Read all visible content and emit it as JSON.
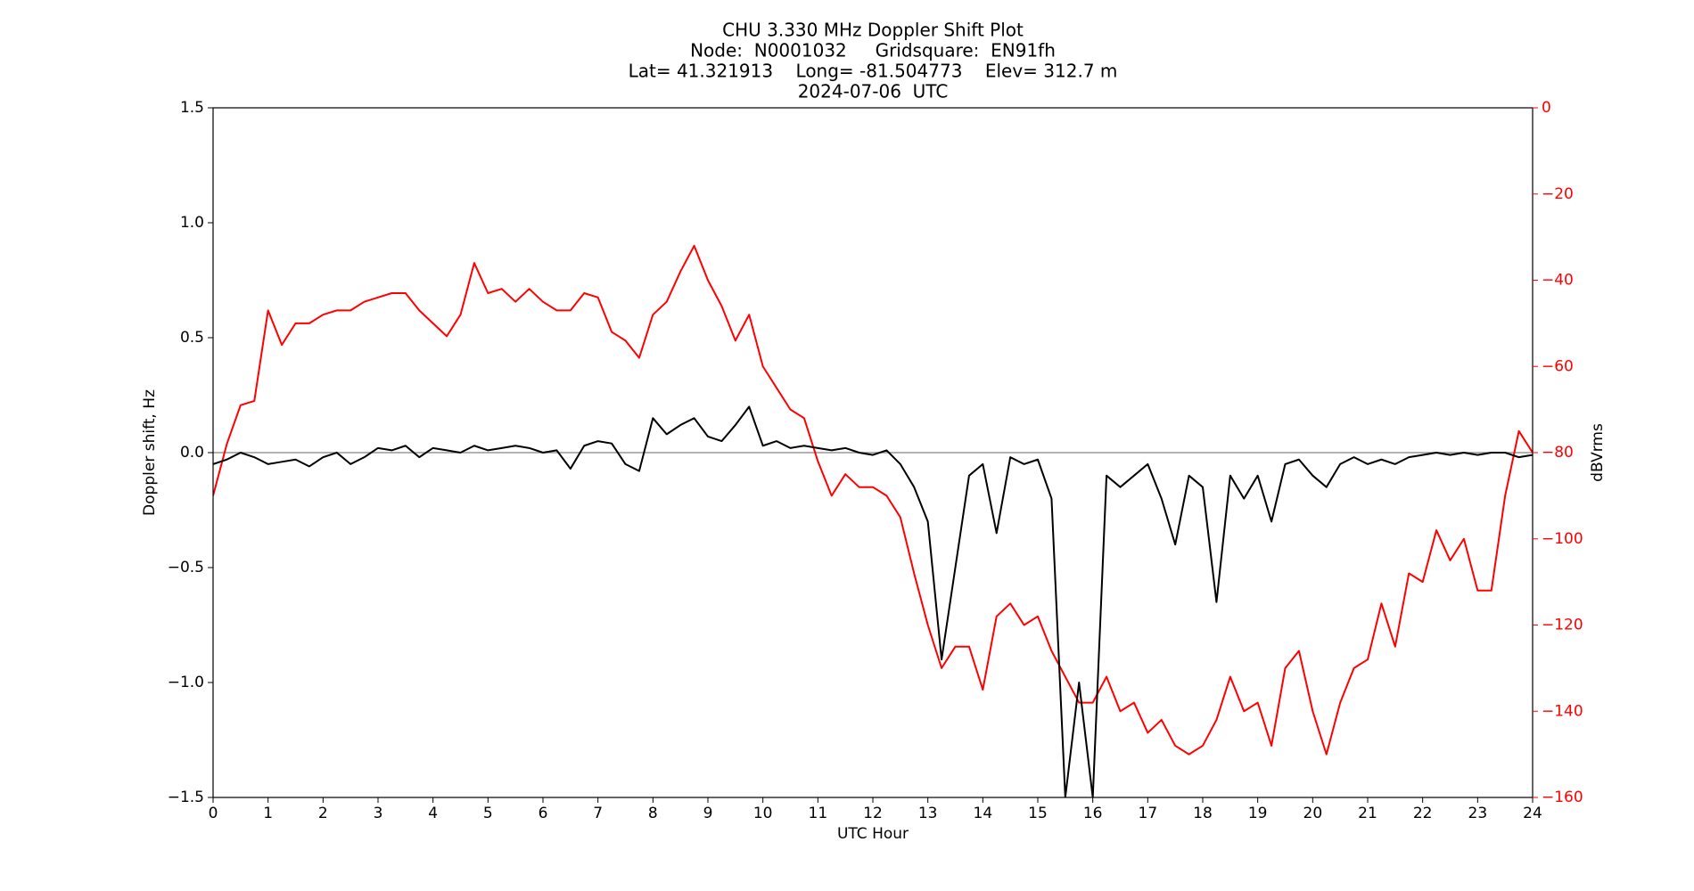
{
  "chart_data": {
    "type": "line",
    "title": [
      "CHU 3.330 MHz Doppler Shift Plot",
      "Node:  N0001032     Gridsquare:  EN91fh",
      "Lat= 41.321913    Long= -81.504773    Elev= 312.7 m",
      "2024-07-06  UTC"
    ],
    "xlabel": "UTC Hour",
    "ylabel": "Doppler shift, Hz",
    "y2label": "dBVrms",
    "y2color": "#ff0000",
    "x": [
      0,
      0.25,
      0.5,
      0.75,
      1,
      1.25,
      1.5,
      1.75,
      2,
      2.25,
      2.5,
      2.75,
      3,
      3.25,
      3.5,
      3.75,
      4,
      4.25,
      4.5,
      4.75,
      5,
      5.25,
      5.5,
      5.75,
      6,
      6.25,
      6.5,
      6.75,
      7,
      7.25,
      7.5,
      7.75,
      8,
      8.25,
      8.5,
      8.75,
      9,
      9.25,
      9.5,
      9.75,
      10,
      10.25,
      10.5,
      10.75,
      11,
      11.25,
      11.5,
      11.75,
      12,
      12.25,
      12.5,
      12.75,
      13,
      13.25,
      13.5,
      13.75,
      14,
      14.25,
      14.5,
      14.75,
      15,
      15.25,
      15.5,
      15.75,
      16,
      16.25,
      16.5,
      16.75,
      17,
      17.25,
      17.5,
      17.75,
      18,
      18.25,
      18.5,
      18.75,
      19,
      19.25,
      19.5,
      19.75,
      20,
      20.25,
      20.5,
      20.75,
      21,
      21.25,
      21.5,
      21.75,
      22,
      22.25,
      22.5,
      22.75,
      23,
      23.25,
      23.5,
      23.75,
      24
    ],
    "series": [
      {
        "color": "#ff0000",
        "axis": "y2",
        "values": [
          -90,
          -78,
          -69,
          -68,
          -47,
          -55,
          -50,
          -50,
          -48,
          -47,
          -47,
          -45,
          -44,
          -43,
          -43,
          -47,
          -50,
          -53,
          -48,
          -36,
          -43,
          -42,
          -45,
          -42,
          -45,
          -47,
          -47,
          -43,
          -44,
          -52,
          -54,
          -58,
          -48,
          -45,
          -38,
          -32,
          -40,
          -46,
          -54,
          -48,
          -60,
          -65,
          -70,
          -72,
          -82,
          -90,
          -85,
          -88,
          -88,
          -90,
          -95,
          -108,
          -120,
          -130,
          -125,
          -125,
          -135,
          -118,
          -115,
          -120,
          -118,
          -126,
          -132,
          -138,
          -138,
          -132,
          -140,
          -138,
          -145,
          -142,
          -148,
          -150,
          -148,
          -142,
          -132,
          -140,
          -138,
          -148,
          -130,
          -126,
          -140,
          -150,
          -138,
          -130,
          -128,
          -115,
          -125,
          -108,
          -110,
          -98,
          -105,
          -100,
          -112,
          -112,
          -90,
          -75,
          -80
        ]
      },
      {
        "color": "#000000",
        "values": [
          -0.05,
          -0.03,
          0.0,
          -0.02,
          -0.05,
          -0.04,
          -0.03,
          -0.06,
          -0.02,
          0.0,
          -0.05,
          -0.02,
          0.02,
          0.01,
          0.03,
          -0.02,
          0.02,
          0.01,
          0.0,
          0.03,
          0.01,
          0.02,
          0.03,
          0.02,
          0.0,
          0.01,
          -0.07,
          0.03,
          0.05,
          0.04,
          -0.05,
          -0.08,
          0.15,
          0.08,
          0.12,
          0.15,
          0.07,
          0.05,
          0.12,
          0.2,
          0.03,
          0.05,
          0.02,
          0.03,
          0.02,
          0.01,
          0.02,
          0.0,
          -0.01,
          0.01,
          -0.05,
          -0.15,
          -0.3,
          -0.9,
          -0.5,
          -0.1,
          -0.05,
          -0.35,
          -0.02,
          -0.05,
          -0.03,
          -0.2,
          -1.5,
          -1.0,
          -1.5,
          -0.1,
          -0.15,
          -0.1,
          -0.05,
          -0.2,
          -0.4,
          -0.1,
          -0.15,
          -0.65,
          -0.1,
          -0.2,
          -0.1,
          -0.3,
          -0.05,
          -0.03,
          -0.1,
          -0.15,
          -0.05,
          -0.02,
          -0.05,
          -0.03,
          -0.05,
          -0.02,
          -0.01,
          0.0,
          -0.01,
          0.0,
          -0.01,
          0.0,
          0.0,
          -0.02,
          -0.01
        ]
      }
    ],
    "hline": 0,
    "xlim": [
      0,
      24
    ],
    "xticks": [
      0,
      1,
      2,
      3,
      4,
      5,
      6,
      7,
      8,
      9,
      10,
      11,
      12,
      13,
      14,
      15,
      16,
      17,
      18,
      19,
      20,
      21,
      22,
      23,
      24
    ],
    "ylim": [
      -1.5,
      1.5
    ],
    "yticks": [
      {
        "value": -1.5,
        "label": "−1.5"
      },
      {
        "value": -1.0,
        "label": "−1.0"
      },
      {
        "value": -0.5,
        "label": "−0.5"
      },
      {
        "value": 0,
        "label": "0.0"
      },
      {
        "value": 0.5,
        "label": "0.5"
      },
      {
        "value": 1.0,
        "label": "1.0"
      },
      {
        "value": 1.5,
        "label": "1.5"
      }
    ],
    "y2lim": [
      -160,
      0
    ],
    "y2ticks": [
      {
        "value": -160,
        "label": "−160"
      },
      {
        "value": -140,
        "label": "−140"
      },
      {
        "value": -120,
        "label": "−120"
      },
      {
        "value": -100,
        "label": "−100"
      },
      {
        "value": -80,
        "label": "−80"
      },
      {
        "value": -60,
        "label": "−60"
      },
      {
        "value": -40,
        "label": "−40"
      },
      {
        "value": -20,
        "label": "−20"
      },
      0
    ]
  }
}
